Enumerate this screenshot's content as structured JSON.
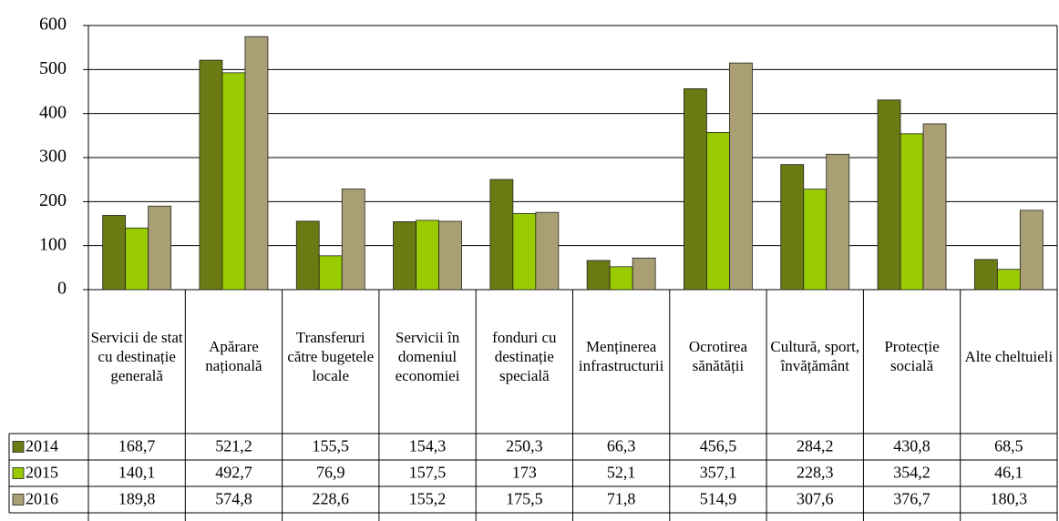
{
  "chart_data": {
    "type": "bar",
    "categories": [
      "Servicii de stat cu destinație generală",
      "Apărare națională",
      "Transferuri către bugetele locale",
      "Servicii în domeniul economiei",
      "fonduri cu destinație specială",
      "Menținerea infrastructurii",
      "Ocrotirea sănătății",
      "Cultură, sport, învățământ",
      "Protecție socială",
      "Alte cheltuieli"
    ],
    "series": [
      {
        "name": "2014",
        "color": "#6b7a12",
        "values": [
          168.7,
          521.2,
          155.5,
          154.3,
          250.3,
          66.3,
          456.5,
          284.2,
          430.8,
          68.5
        ],
        "value_labels": [
          "168,7",
          "521,2",
          "155,5",
          "154,3",
          "250,3",
          "66,3",
          "456,5",
          "284,2",
          "430,8",
          "68,5"
        ]
      },
      {
        "name": "2015",
        "color": "#99cc00",
        "values": [
          140.1,
          492.7,
          76.9,
          157.5,
          173,
          52.1,
          357.1,
          228.3,
          354.2,
          46.1
        ],
        "value_labels": [
          "140,1",
          "492,7",
          "76,9",
          "157,5",
          "173",
          "52,1",
          "357,1",
          "228,3",
          "354,2",
          "46,1"
        ]
      },
      {
        "name": "2016",
        "color": "#aa9f74",
        "values": [
          189.8,
          574.8,
          228.6,
          155.2,
          175.5,
          71.8,
          514.9,
          307.6,
          376.7,
          180.3
        ],
        "value_labels": [
          "189,8",
          "574,8",
          "228,6",
          "155,2",
          "175,5",
          "71,8",
          "514,9",
          "307,6",
          "376,7",
          "180,3"
        ]
      }
    ],
    "ylim": [
      0,
      600
    ],
    "yticks": [
      0,
      100,
      200,
      300,
      400,
      500,
      600
    ],
    "grid": true,
    "data_table": true
  }
}
